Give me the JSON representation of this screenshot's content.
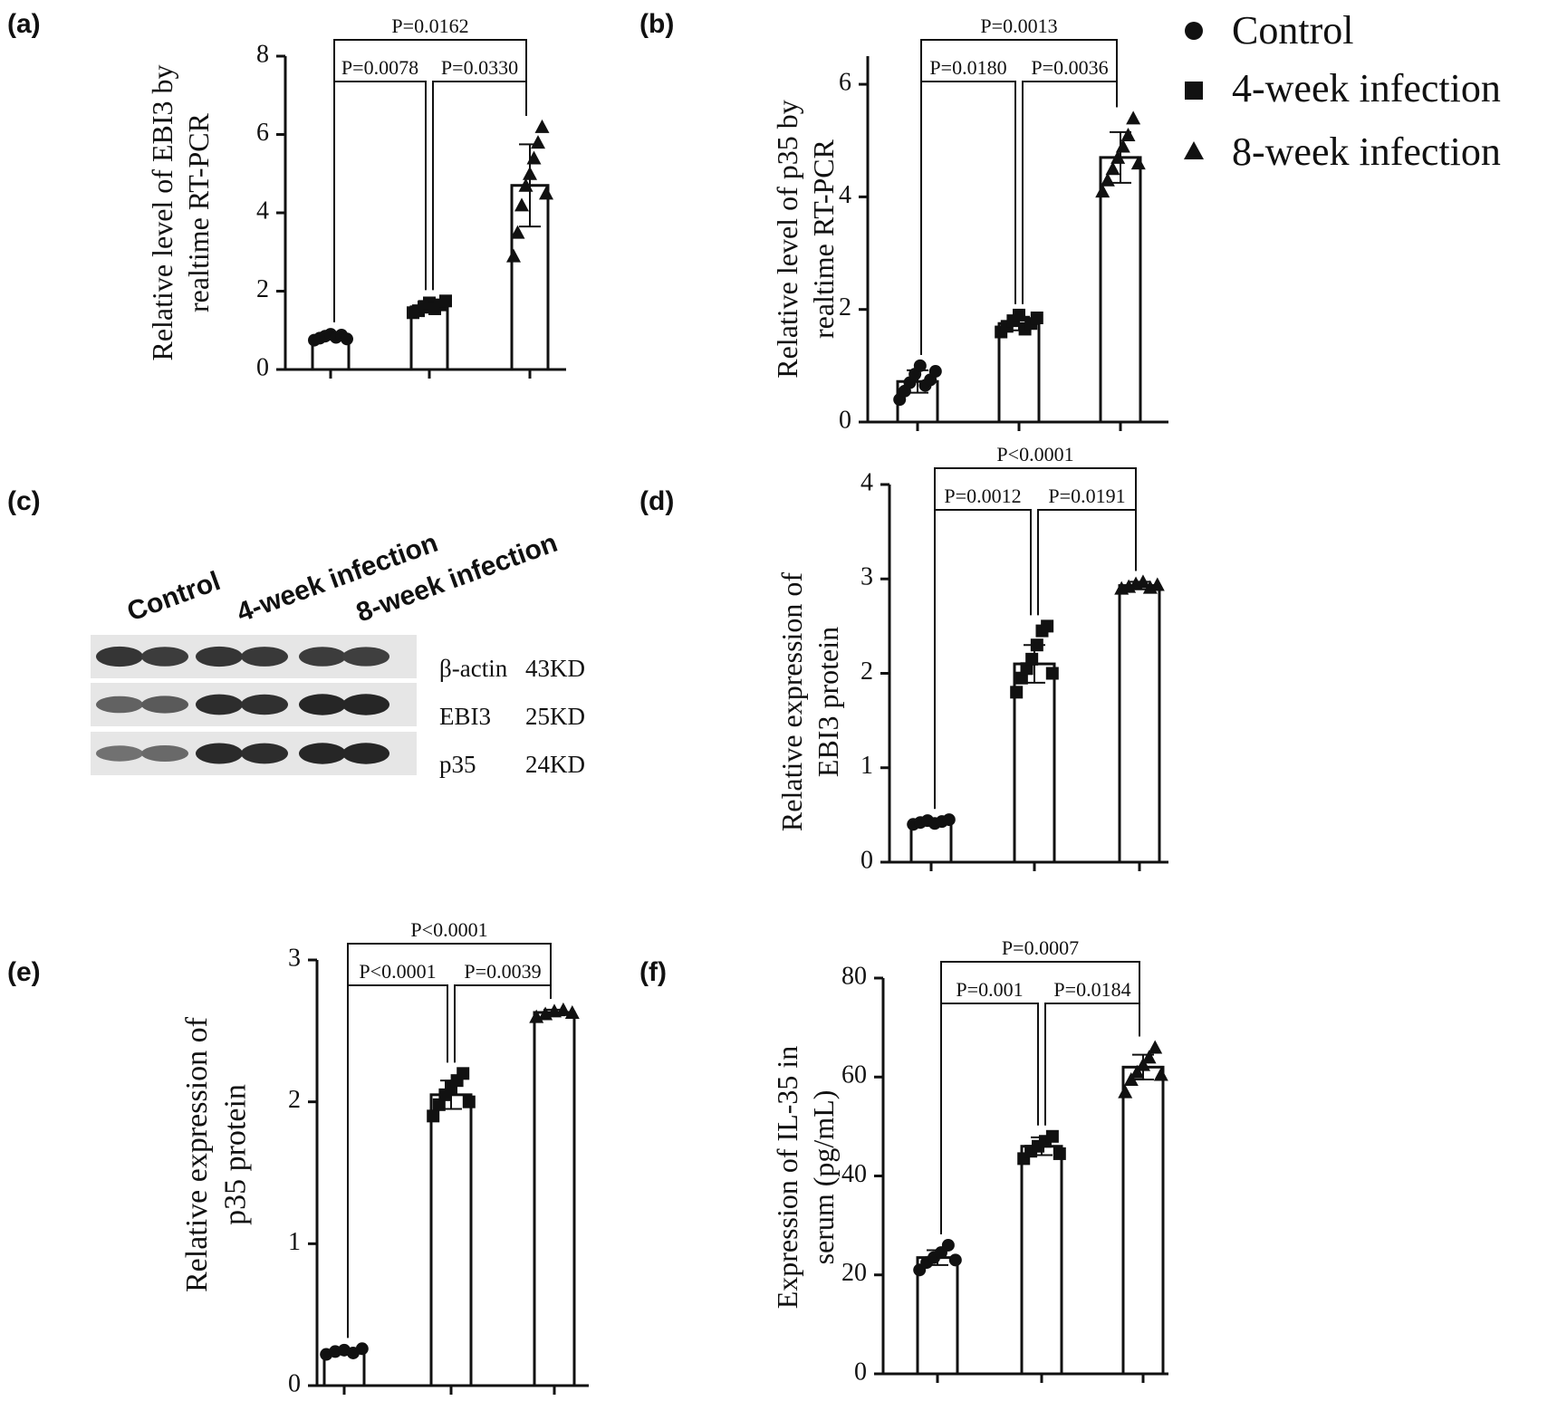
{
  "legend": {
    "items": [
      {
        "marker": "circle",
        "label": "Control"
      },
      {
        "marker": "square",
        "label": "4-week infection"
      },
      {
        "marker": "triangle",
        "label": "8-week infection"
      }
    ]
  },
  "blot": {
    "panel_label": "(c)",
    "group_labels": [
      "Control",
      "4-week infection",
      "8-week infection"
    ],
    "rows": [
      {
        "protein": "β-actin",
        "size": "43KD",
        "band_intensity": [
          0.85,
          0.8,
          0.85,
          0.82,
          0.8,
          0.78
        ]
      },
      {
        "protein": "EBI3",
        "size": "25KD",
        "band_intensity": [
          0.55,
          0.6,
          0.9,
          0.88,
          0.95,
          0.95
        ]
      },
      {
        "protein": "p35",
        "size": "24KD",
        "band_intensity": [
          0.45,
          0.5,
          0.92,
          0.9,
          0.95,
          0.95
        ]
      }
    ]
  },
  "chart_data": [
    {
      "id": "a",
      "panel_label": "(a)",
      "type": "bar",
      "ylabel": [
        "Relative level of EBI3 by",
        "realtime RT-PCR"
      ],
      "ylim": [
        0,
        8
      ],
      "yticks": [
        "0",
        "2",
        "4",
        "6",
        "8"
      ],
      "series": [
        {
          "name": "Control",
          "marker": "circle",
          "value": 0.85,
          "sd": 0.08,
          "points": [
            0.75,
            0.8,
            0.85,
            0.9,
            0.82,
            0.88,
            0.78
          ]
        },
        {
          "name": "4-week infection",
          "marker": "square",
          "value": 1.6,
          "sd": 0.15,
          "points": [
            1.45,
            1.5,
            1.6,
            1.7,
            1.55,
            1.65,
            1.75
          ]
        },
        {
          "name": "8-week infection",
          "marker": "triangle",
          "value": 4.7,
          "sd": 1.05,
          "points": [
            2.9,
            3.5,
            4.2,
            4.7,
            5.0,
            5.4,
            5.8,
            6.2,
            4.5
          ]
        }
      ],
      "comparisons": [
        {
          "from": 0,
          "to": 1,
          "label": "P=0.0078",
          "level": 1
        },
        {
          "from": 1,
          "to": 2,
          "label": "P=0.0330",
          "level": 1
        },
        {
          "from": 0,
          "to": 2,
          "label": "P=0.0162",
          "level": 2
        }
      ]
    },
    {
      "id": "b",
      "panel_label": "(b)",
      "type": "bar",
      "ylabel": [
        "Relative level of p35 by",
        "realtime RT-PCR"
      ],
      "ylim": [
        0,
        6.5
      ],
      "yticks": [
        "0",
        "2",
        "4",
        "6"
      ],
      "series": [
        {
          "name": "Control",
          "marker": "circle",
          "value": 0.72,
          "sd": 0.2,
          "points": [
            0.4,
            0.55,
            0.7,
            0.85,
            1.0,
            0.65,
            0.75,
            0.9
          ]
        },
        {
          "name": "4-week infection",
          "marker": "square",
          "value": 1.75,
          "sd": 0.12,
          "points": [
            1.6,
            1.7,
            1.8,
            1.9,
            1.65,
            1.75,
            1.85
          ]
        },
        {
          "name": "8-week infection",
          "marker": "triangle",
          "value": 4.7,
          "sd": 0.45,
          "points": [
            4.1,
            4.3,
            4.5,
            4.7,
            4.9,
            5.1,
            5.4,
            4.6
          ]
        }
      ],
      "comparisons": [
        {
          "from": 0,
          "to": 1,
          "label": "P=0.0180",
          "level": 1
        },
        {
          "from": 1,
          "to": 2,
          "label": "P=0.0036",
          "level": 1
        },
        {
          "from": 0,
          "to": 2,
          "label": "P=0.0013",
          "level": 2
        }
      ]
    },
    {
      "id": "d",
      "panel_label": "(d)",
      "type": "bar",
      "ylabel": [
        "Relative expression of",
        "EBI3 protein"
      ],
      "ylim": [
        0,
        4
      ],
      "yticks": [
        "0",
        "1",
        "2",
        "3",
        "4"
      ],
      "series": [
        {
          "name": "Control",
          "marker": "circle",
          "value": 0.42,
          "sd": 0.03,
          "points": [
            0.4,
            0.42,
            0.44,
            0.41,
            0.43,
            0.45
          ]
        },
        {
          "name": "4-week infection",
          "marker": "square",
          "value": 2.1,
          "sd": 0.2,
          "points": [
            1.8,
            1.95,
            2.05,
            2.15,
            2.3,
            2.45,
            2.5,
            2.0
          ]
        },
        {
          "name": "8-week infection",
          "marker": "triangle",
          "value": 2.93,
          "sd": 0.04,
          "points": [
            2.9,
            2.92,
            2.95,
            2.97,
            2.91,
            2.94
          ]
        }
      ],
      "comparisons": [
        {
          "from": 0,
          "to": 1,
          "label": "P=0.0012",
          "level": 1
        },
        {
          "from": 1,
          "to": 2,
          "label": "P=0.0191",
          "level": 1
        },
        {
          "from": 0,
          "to": 2,
          "label": "P<0.0001",
          "level": 2
        }
      ]
    },
    {
      "id": "e",
      "panel_label": "(e)",
      "type": "bar",
      "ylabel": [
        "Relative expression of",
        "p35 protein"
      ],
      "ylim": [
        0,
        3
      ],
      "yticks": [
        "0",
        "1",
        "2",
        "3"
      ],
      "series": [
        {
          "name": "Control",
          "marker": "circle",
          "value": 0.24,
          "sd": 0.02,
          "points": [
            0.22,
            0.24,
            0.25,
            0.23,
            0.26
          ]
        },
        {
          "name": "4-week infection",
          "marker": "square",
          "value": 2.05,
          "sd": 0.1,
          "points": [
            1.9,
            1.98,
            2.05,
            2.1,
            2.15,
            2.2,
            2.0
          ]
        },
        {
          "name": "8-week infection",
          "marker": "triangle",
          "value": 2.63,
          "sd": 0.02,
          "points": [
            2.6,
            2.62,
            2.64,
            2.65,
            2.63
          ]
        }
      ],
      "comparisons": [
        {
          "from": 0,
          "to": 1,
          "label": "P<0.0001",
          "level": 1
        },
        {
          "from": 1,
          "to": 2,
          "label": "P=0.0039",
          "level": 1
        },
        {
          "from": 0,
          "to": 2,
          "label": "P<0.0001",
          "level": 2
        }
      ]
    },
    {
      "id": "f",
      "panel_label": "(f)",
      "type": "bar",
      "ylabel": [
        "Expression of IL-35 in",
        "serum (pg/mL)"
      ],
      "ylim": [
        0,
        80
      ],
      "yticks": [
        "0",
        "20",
        "40",
        "60",
        "80"
      ],
      "series": [
        {
          "name": "Control",
          "marker": "circle",
          "value": 23.5,
          "sd": 1.5,
          "points": [
            21,
            22.5,
            23.5,
            24.5,
            26,
            23
          ]
        },
        {
          "name": "4-week infection",
          "marker": "square",
          "value": 46,
          "sd": 1.8,
          "points": [
            43.5,
            45,
            46,
            47,
            48,
            44.5
          ]
        },
        {
          "name": "8-week infection",
          "marker": "triangle",
          "value": 62,
          "sd": 2.5,
          "points": [
            57,
            59.5,
            61,
            62.5,
            64,
            66,
            60.5
          ]
        }
      ],
      "comparisons": [
        {
          "from": 0,
          "to": 1,
          "label": "P=0.001",
          "level": 1
        },
        {
          "from": 1,
          "to": 2,
          "label": "P=0.0184",
          "level": 1
        },
        {
          "from": 0,
          "to": 2,
          "label": "P=0.0007",
          "level": 2
        }
      ]
    }
  ]
}
